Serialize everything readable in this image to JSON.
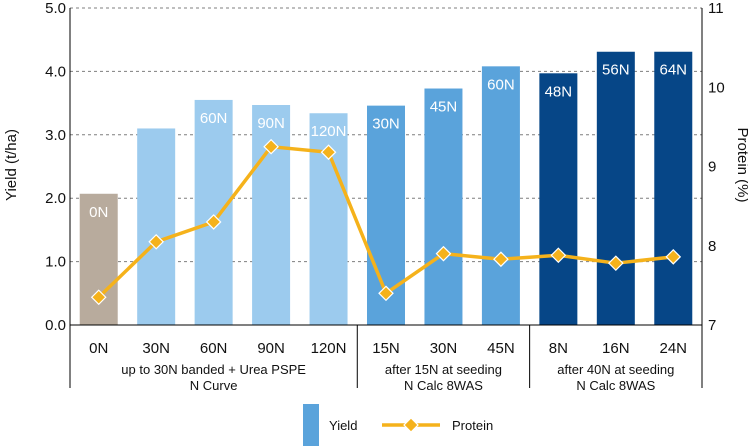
{
  "chart_data": {
    "type": "bar",
    "categories": [
      "0N",
      "30N",
      "60N",
      "90N",
      "120N",
      "15N",
      "30N",
      "45N",
      "8N",
      "16N",
      "24N"
    ],
    "bar_labels": [
      "0N",
      "",
      "60N",
      "90N",
      "120N",
      "30N",
      "45N",
      "60N",
      "48N",
      "56N",
      "64N"
    ],
    "groups": [
      {
        "line1": "up to 30N banded + Urea PSPE",
        "line2": "N Curve"
      },
      {
        "line1": "after 15N at seeding",
        "line2": "N Calc 8WAS"
      },
      {
        "line1": "after 40N at seeding",
        "line2": "N Calc 8WAS"
      }
    ],
    "series": [
      {
        "name": "Yield",
        "type": "bar",
        "axis": "left",
        "values": [
          2.07,
          3.1,
          3.55,
          3.47,
          3.34,
          3.46,
          3.73,
          4.08,
          3.97,
          4.31,
          4.31
        ]
      },
      {
        "name": "Protein",
        "type": "line",
        "axis": "right",
        "values": [
          7.35,
          8.05,
          8.3,
          9.25,
          9.18,
          7.4,
          7.9,
          7.83,
          7.88,
          7.78,
          7.86
        ]
      }
    ],
    "bar_colors": [
      "#b8ab9d",
      "#9ccbee",
      "#9ccbee",
      "#9ccbee",
      "#9ccbee",
      "#5aa3db",
      "#5aa3db",
      "#5aa3db",
      "#064687",
      "#064687",
      "#064687"
    ],
    "line_color": "#f5b21b",
    "ylabel": "Yield (t/ha)",
    "y2label": "Protein (%)",
    "ylim": [
      0,
      5
    ],
    "y2lim": [
      7,
      11
    ],
    "yticks": [
      "0.0",
      "1.0",
      "2.0",
      "3.0",
      "4.0",
      "5.0"
    ],
    "y2ticks": [
      "7",
      "8",
      "9",
      "10",
      "11"
    ],
    "grid": true,
    "legend": {
      "placement": "bottom",
      "items": [
        "Yield",
        "Protein"
      ]
    }
  }
}
